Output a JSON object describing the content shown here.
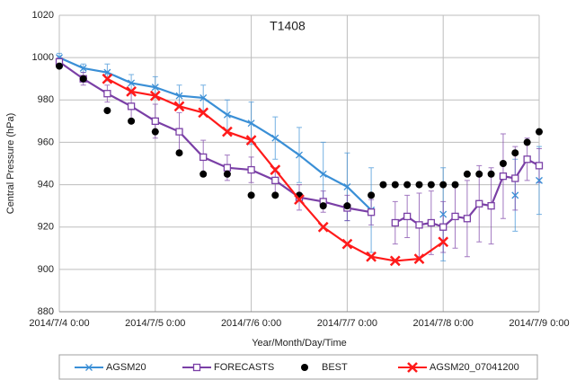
{
  "chart_data": {
    "type": "line",
    "title": "T1408",
    "x_label": "Year/Month/Day/Time",
    "y_label": "Central Pressure (hPa)",
    "xlim": [
      "2014/7/4 0:00",
      "2014/7/9 0:00"
    ],
    "xticks": [
      "2014/7/4 0:00",
      "2014/7/5 0:00",
      "2014/7/6 0:00",
      "2014/7/7 0:00",
      "2014/7/8 0:00",
      "2014/7/9 0:00"
    ],
    "ylim": [
      880,
      1020
    ],
    "yticks": [
      880,
      900,
      920,
      940,
      960,
      980,
      1000,
      1020
    ],
    "grid": true,
    "series": [
      {
        "name": "AGSM20",
        "color": "#3a8fd6",
        "marker": "x",
        "line": true,
        "x": [
          "2014/7/4 0:00",
          "2014/7/4 6:00",
          "2014/7/4 12:00",
          "2014/7/4 18:00",
          "2014/7/5 0:00",
          "2014/7/5 6:00",
          "2014/7/5 12:00",
          "2014/7/5 18:00",
          "2014/7/6 0:00",
          "2014/7/6 6:00",
          "2014/7/6 12:00",
          "2014/7/6 18:00",
          "2014/7/7 0:00",
          "2014/7/7 6:00",
          "2014/7/7 9:00",
          "2014/7/8 0:00",
          "2014/7/8 3:00",
          "2014/7/8 18:00",
          "2014/7/8 21:00",
          "2014/7/9 0:00"
        ],
        "values": [
          1000,
          995,
          993,
          988,
          986,
          982,
          981,
          973,
          969,
          962,
          954,
          945,
          939,
          928,
          null,
          926,
          null,
          935,
          null,
          942
        ],
        "errors": [
          2,
          2,
          4,
          4,
          5,
          5,
          6,
          7,
          10,
          10,
          13,
          15,
          16,
          20,
          null,
          22,
          null,
          17,
          null,
          16
        ]
      },
      {
        "name": "FORECASTS",
        "color": "#7a3fa6",
        "marker": "square",
        "line": true,
        "x": [
          "2014/7/4 0:00",
          "2014/7/4 6:00",
          "2014/7/4 12:00",
          "2014/7/4 18:00",
          "2014/7/5 0:00",
          "2014/7/5 6:00",
          "2014/7/5 12:00",
          "2014/7/5 18:00",
          "2014/7/6 0:00",
          "2014/7/6 6:00",
          "2014/7/6 12:00",
          "2014/7/6 18:00",
          "2014/7/7 0:00",
          "2014/7/7 6:00",
          "2014/7/7 9:00",
          "2014/7/7 12:00",
          "2014/7/7 15:00",
          "2014/7/7 18:00",
          "2014/7/7 21:00",
          "2014/7/8 0:00",
          "2014/7/8 3:00",
          "2014/7/8 6:00",
          "2014/7/8 9:00",
          "2014/7/8 12:00",
          "2014/7/8 15:00",
          "2014/7/8 18:00",
          "2014/7/8 21:00",
          "2014/7/9 0:00"
        ],
        "values": [
          998,
          990,
          983,
          977,
          970,
          965,
          953,
          948,
          947,
          942,
          934,
          932,
          929,
          927,
          null,
          922,
          925,
          921,
          922,
          920,
          925,
          924,
          931,
          930,
          944,
          943,
          952,
          949
        ],
        "errors": [
          2,
          3,
          4,
          6,
          8,
          9,
          8,
          6,
          6,
          6,
          6,
          5,
          6,
          6,
          null,
          10,
          10,
          15,
          15,
          12,
          15,
          18,
          18,
          18,
          20,
          15,
          10,
          8
        ]
      },
      {
        "name": "BEST",
        "color": "#000000",
        "marker": "circle",
        "line": false,
        "x": [
          "2014/7/4 0:00",
          "2014/7/4 6:00",
          "2014/7/4 12:00",
          "2014/7/4 18:00",
          "2014/7/5 0:00",
          "2014/7/5 6:00",
          "2014/7/5 12:00",
          "2014/7/5 18:00",
          "2014/7/6 0:00",
          "2014/7/6 6:00",
          "2014/7/6 12:00",
          "2014/7/6 18:00",
          "2014/7/7 0:00",
          "2014/7/7 6:00",
          "2014/7/7 9:00",
          "2014/7/7 12:00",
          "2014/7/7 15:00",
          "2014/7/7 18:00",
          "2014/7/7 21:00",
          "2014/7/8 0:00",
          "2014/7/8 3:00",
          "2014/7/8 6:00",
          "2014/7/8 9:00",
          "2014/7/8 12:00",
          "2014/7/8 15:00",
          "2014/7/8 18:00",
          "2014/7/8 21:00",
          "2014/7/9 0:00"
        ],
        "values": [
          996,
          990,
          975,
          970,
          965,
          955,
          945,
          945,
          935,
          935,
          935,
          930,
          930,
          935,
          940,
          940,
          940,
          940,
          940,
          940,
          940,
          945,
          945,
          945,
          950,
          955,
          960,
          965
        ]
      },
      {
        "name": "AGSM20_07041200",
        "color": "#ff1a1a",
        "marker": "X",
        "line": true,
        "x": [
          "2014/7/4 12:00",
          "2014/7/4 18:00",
          "2014/7/5 0:00",
          "2014/7/5 6:00",
          "2014/7/5 12:00",
          "2014/7/5 18:00",
          "2014/7/6 0:00",
          "2014/7/6 6:00",
          "2014/7/6 12:00",
          "2014/7/6 18:00",
          "2014/7/7 0:00",
          "2014/7/7 6:00",
          "2014/7/7 12:00",
          "2014/7/7 18:00",
          "2014/7/8 0:00"
        ],
        "values": [
          990,
          984,
          982,
          977,
          974,
          965,
          961,
          947,
          933,
          920,
          912,
          906,
          904,
          905,
          913
        ]
      }
    ]
  }
}
